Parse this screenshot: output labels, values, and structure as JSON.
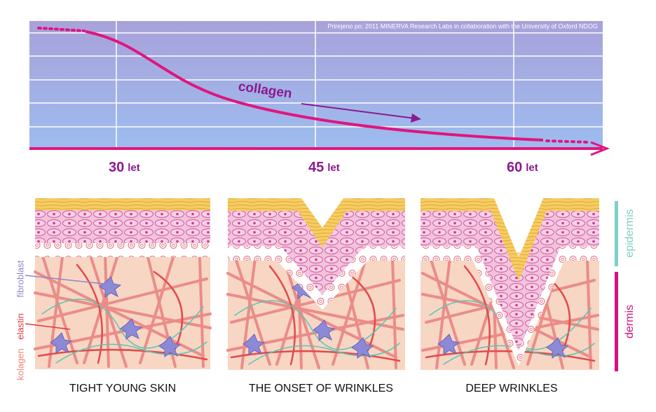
{
  "source": "Prirejeno po: 2011 MINERVA Research Labs in collaboration with the University of Oxford NDOG",
  "curve_label": "collagen",
  "ages": [
    {
      "number": "30",
      "unit": "let"
    },
    {
      "number": "45",
      "unit": "let"
    },
    {
      "number": "60",
      "unit": "let"
    }
  ],
  "panels": [
    {
      "title": "TIGHT YOUNG SKIN"
    },
    {
      "title": "THE ONSET OF WRINKLES"
    },
    {
      "title": "DEEP WRINKLES"
    }
  ],
  "layer_labels": {
    "epidermis": "epidermis",
    "dermis": "dermis"
  },
  "fiber_labels": {
    "fibroblast": "fibroblast",
    "elastin": "elastin",
    "kolagen": "kolagen"
  }
}
